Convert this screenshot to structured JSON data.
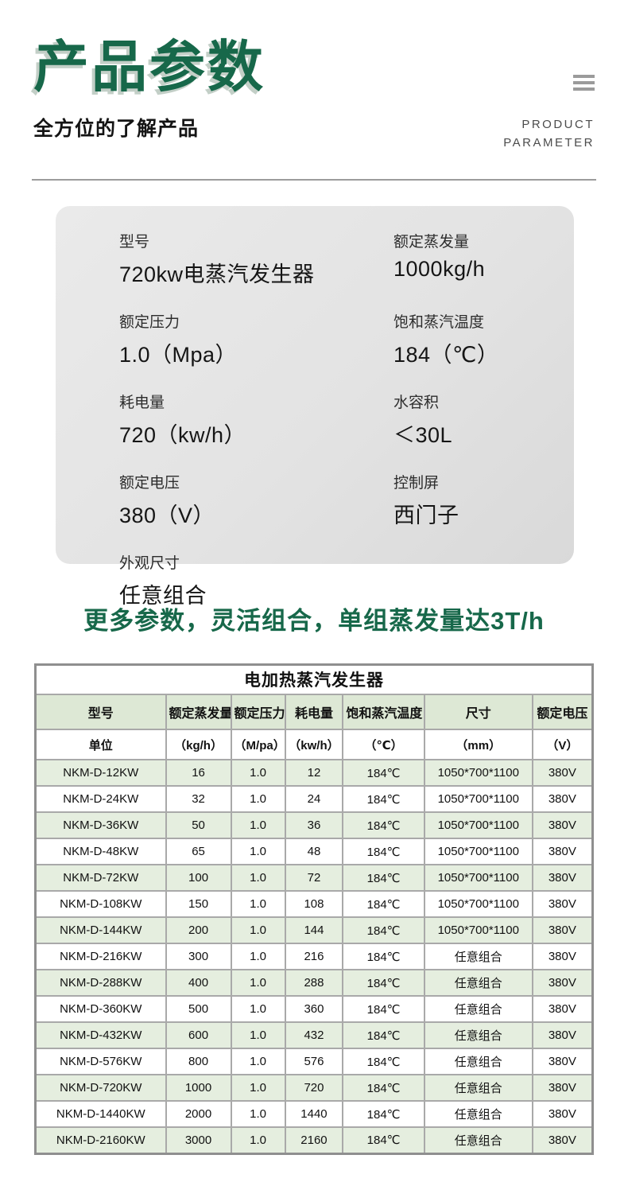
{
  "header": {
    "title": "产品参数",
    "subtitle": "全方位的了解产品",
    "eyebrow_line1": "PRODUCT",
    "eyebrow_line2": "PARAMETER"
  },
  "spec_card": {
    "items": [
      {
        "label": "型号",
        "value": "720kw电蒸汽发生器"
      },
      {
        "label": "额定蒸发量",
        "value": "1000kg/h"
      },
      {
        "label": "额定压力",
        "value": "1.0（Mpa）"
      },
      {
        "label": "饱和蒸汽温度",
        "value": "184（℃）"
      },
      {
        "label": "耗电量",
        "value": "720（kw/h）"
      },
      {
        "label": "水容积",
        "value": "＜30L"
      },
      {
        "label": "额定电压",
        "value": "380（V）"
      },
      {
        "label": "控制屏",
        "value": "西门子"
      },
      {
        "label": "外观尺寸",
        "value": "任意组合"
      }
    ]
  },
  "section_heading": "更多参数，灵活组合，单组蒸发量达3T/h",
  "table": {
    "title": "电加热蒸汽发生器",
    "columns": [
      "型号",
      "额定蒸发量",
      "额定压力",
      "耗电量",
      "饱和蒸汽温度",
      "尺寸",
      "额定电压"
    ],
    "units": [
      "单位",
      "（kg/h）",
      "（M/pa）",
      "（kw/h）",
      "（℃）",
      "（mm）",
      "（V）"
    ],
    "rows": [
      [
        "NKM-D-12KW",
        "16",
        "1.0",
        "12",
        "184℃",
        "1050*700*1100",
        "380V"
      ],
      [
        "NKM-D-24KW",
        "32",
        "1.0",
        "24",
        "184℃",
        "1050*700*1100",
        "380V"
      ],
      [
        "NKM-D-36KW",
        "50",
        "1.0",
        "36",
        "184℃",
        "1050*700*1100",
        "380V"
      ],
      [
        "NKM-D-48KW",
        "65",
        "1.0",
        "48",
        "184℃",
        "1050*700*1100",
        "380V"
      ],
      [
        "NKM-D-72KW",
        "100",
        "1.0",
        "72",
        "184℃",
        "1050*700*1100",
        "380V"
      ],
      [
        "NKM-D-108KW",
        "150",
        "1.0",
        "108",
        "184℃",
        "1050*700*1100",
        "380V"
      ],
      [
        "NKM-D-144KW",
        "200",
        "1.0",
        "144",
        "184℃",
        "1050*700*1100",
        "380V"
      ],
      [
        "NKM-D-216KW",
        "300",
        "1.0",
        "216",
        "184℃",
        "任意组合",
        "380V"
      ],
      [
        "NKM-D-288KW",
        "400",
        "1.0",
        "288",
        "184℃",
        "任意组合",
        "380V"
      ],
      [
        "NKM-D-360KW",
        "500",
        "1.0",
        "360",
        "184℃",
        "任意组合",
        "380V"
      ],
      [
        "NKM-D-432KW",
        "600",
        "1.0",
        "432",
        "184℃",
        "任意组合",
        "380V"
      ],
      [
        "NKM-D-576KW",
        "800",
        "1.0",
        "576",
        "184℃",
        "任意组合",
        "380V"
      ],
      [
        "NKM-D-720KW",
        "1000",
        "1.0",
        "720",
        "184℃",
        "任意组合",
        "380V"
      ],
      [
        "NKM-D-1440KW",
        "2000",
        "1.0",
        "1440",
        "184℃",
        "任意组合",
        "380V"
      ],
      [
        "NKM-D-2160KW",
        "3000",
        "1.0",
        "2160",
        "184℃",
        "任意组合",
        "380V"
      ]
    ]
  },
  "colors": {
    "accent_green": "#17684a",
    "title_shadow": "#c3cfc7",
    "table_header_bg": "#dde8d5",
    "table_alt_row_bg": "#e5eedf",
    "table_border": "#a9a9a9",
    "card_bg": "#e3e3e3",
    "divider": "#9c9c9c",
    "meta_text": "#4c4c4c",
    "hamburger_gray": "#9b9b9b"
  }
}
